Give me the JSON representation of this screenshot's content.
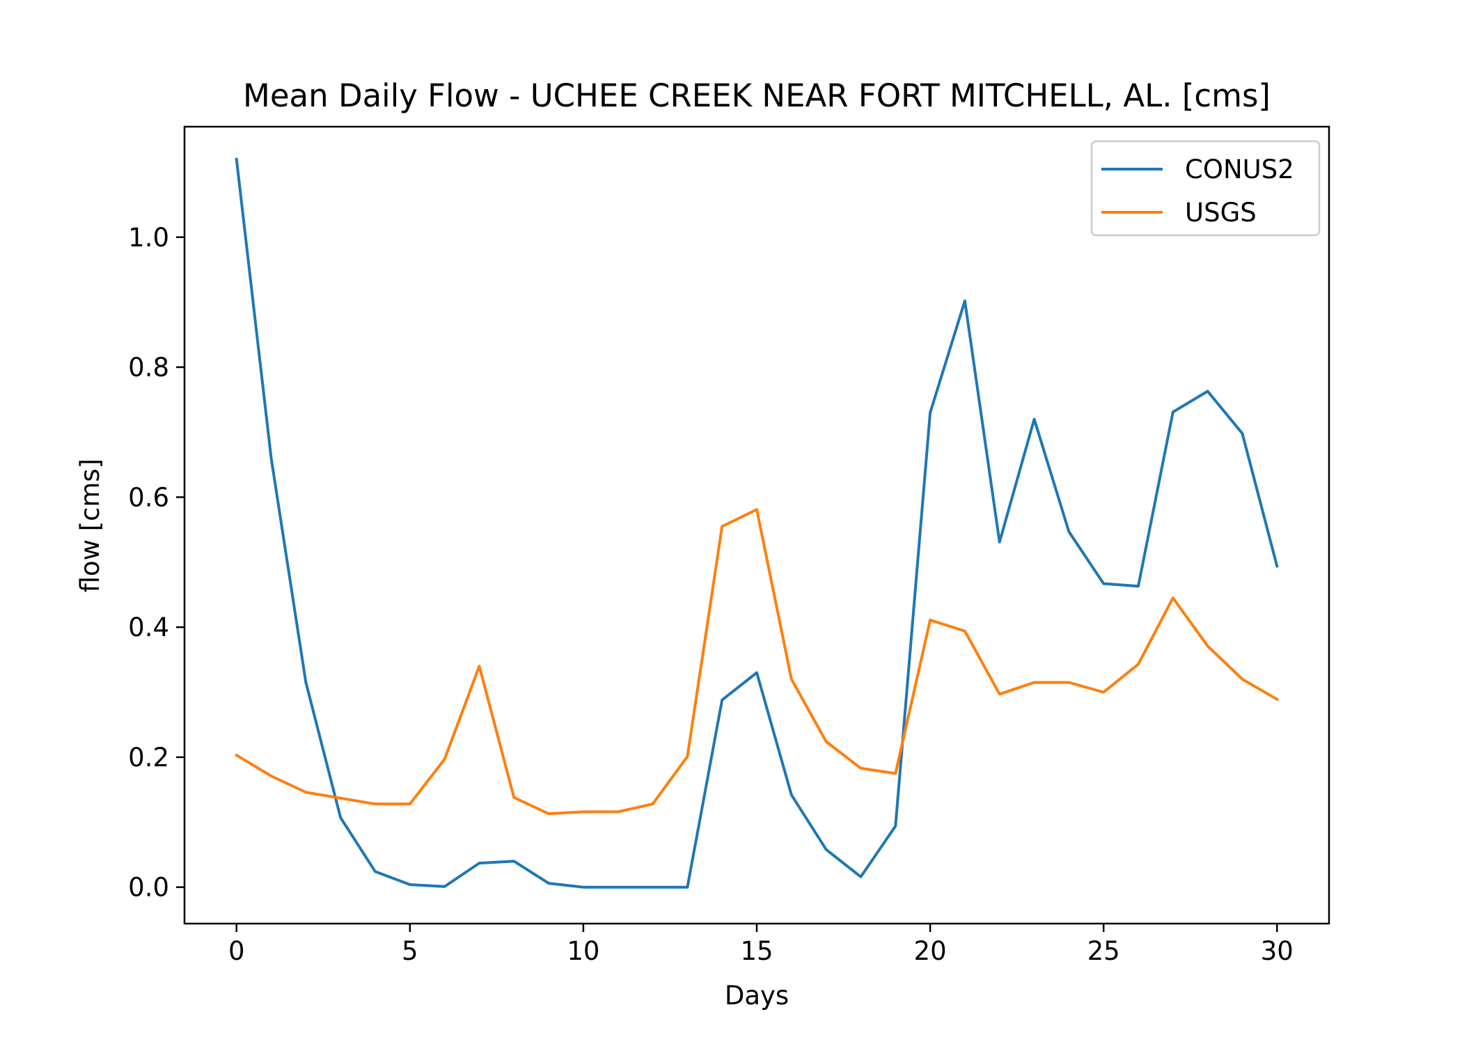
{
  "chart_data": {
    "type": "line",
    "title": "Mean Daily Flow - UCHEE CREEK NEAR FORT MITCHELL, AL. [cms]",
    "xlabel": "Days",
    "ylabel": "flow [cms]",
    "xlim": [
      -1.5,
      31.5
    ],
    "ylim": [
      -0.056,
      1.17
    ],
    "xticks": [
      0,
      5,
      10,
      15,
      20,
      25,
      30
    ],
    "yticks": [
      0.0,
      0.2,
      0.4,
      0.6,
      0.8,
      1.0
    ],
    "xtick_labels": [
      "0",
      "5",
      "10",
      "15",
      "20",
      "25",
      "30"
    ],
    "ytick_labels": [
      "0.0",
      "0.2",
      "0.4",
      "0.6",
      "0.8",
      "1.0"
    ],
    "grid": false,
    "legend_position": "top-right",
    "x": [
      0,
      1,
      2,
      3,
      4,
      5,
      6,
      7,
      8,
      9,
      10,
      11,
      12,
      13,
      14,
      15,
      16,
      17,
      18,
      19,
      20,
      21,
      22,
      23,
      24,
      25,
      26,
      27,
      28,
      29,
      30
    ],
    "series": [
      {
        "name": "CONUS2",
        "color": "#1f77b4",
        "values": [
          1.12,
          0.66,
          0.315,
          0.107,
          0.024,
          0.004,
          0.001,
          0.037,
          0.04,
          0.006,
          0.0,
          0.0,
          0.0,
          0.0,
          0.288,
          0.33,
          0.142,
          0.058,
          0.016,
          0.094,
          0.73,
          0.902,
          0.531,
          0.72,
          0.547,
          0.467,
          0.463,
          0.731,
          0.763,
          0.698,
          0.494
        ]
      },
      {
        "name": "USGS",
        "color": "#ff7f0e",
        "values": [
          0.203,
          0.171,
          0.146,
          0.137,
          0.128,
          0.128,
          0.197,
          0.34,
          0.138,
          0.113,
          0.116,
          0.116,
          0.128,
          0.201,
          0.555,
          0.581,
          0.32,
          0.224,
          0.183,
          0.175,
          0.411,
          0.394,
          0.297,
          0.315,
          0.315,
          0.3,
          0.343,
          0.445,
          0.371,
          0.32,
          0.289
        ]
      }
    ]
  }
}
